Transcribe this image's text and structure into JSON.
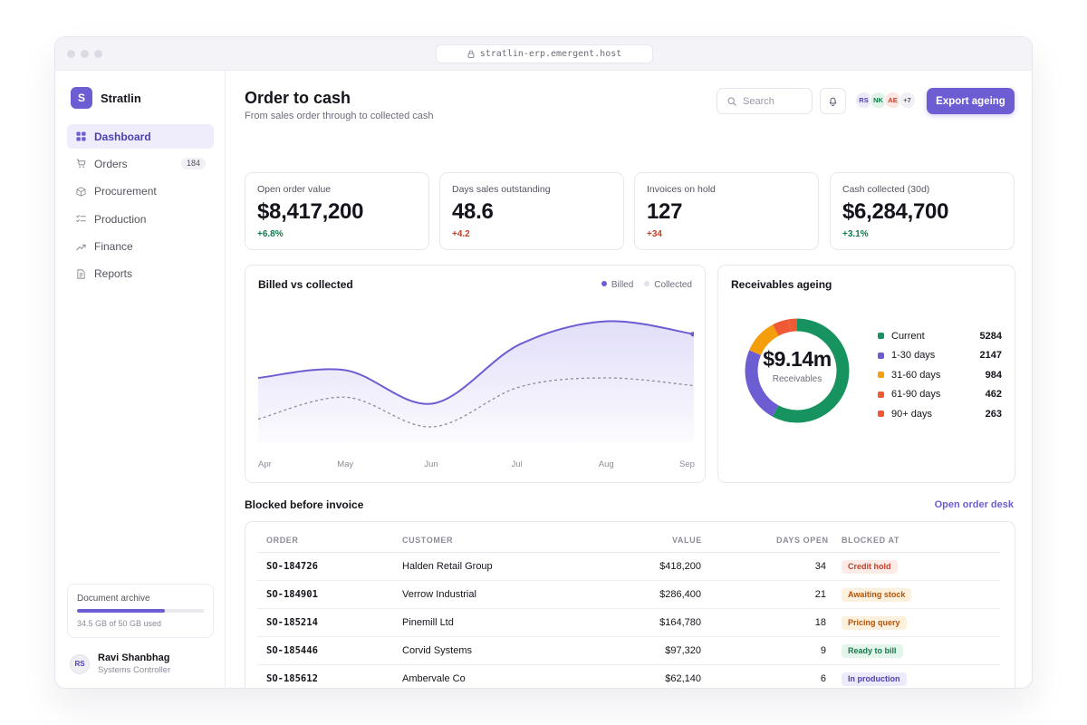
{
  "browser": {
    "url": "stratlin-erp.emergent.host"
  },
  "app": {
    "logo_letter": "S",
    "name": "Stratlin"
  },
  "sidebar": {
    "items": [
      {
        "label": "Dashboard",
        "icon": "grid-icon",
        "active": true
      },
      {
        "label": "Orders",
        "icon": "cart-icon",
        "badge": "184"
      },
      {
        "label": "Procurement",
        "icon": "box-icon"
      },
      {
        "label": "Production",
        "icon": "list-check-icon"
      },
      {
        "label": "Finance",
        "icon": "trend-up-icon"
      },
      {
        "label": "Reports",
        "icon": "file-text-icon"
      }
    ],
    "storage": {
      "title": "Document archive",
      "used_text": "34.5 GB of 50 GB used",
      "used_fraction": 0.69
    },
    "user": {
      "initials": "RS",
      "name": "Ravi Shanbhag",
      "role": "Systems Controller"
    }
  },
  "header": {
    "title": "Order to cash",
    "subtitle": "From sales order through to collected cash",
    "search_placeholder": "Search",
    "avatars": [
      {
        "initials": "RS",
        "bg": "#ece9fb",
        "fg": "#4d40b4"
      },
      {
        "initials": "NK",
        "bg": "#dff3e9",
        "fg": "#137a4c"
      },
      {
        "initials": "AE",
        "bg": "#fde6e1",
        "fg": "#c2412a"
      }
    ],
    "more_count": "+7",
    "export_label": "Export ageing"
  },
  "kpis": [
    {
      "label": "Open order value",
      "value": "$8,417,200",
      "delta": "+6.8%",
      "delta_color": "#137a4c"
    },
    {
      "label": "Days sales outstanding",
      "value": "48.6",
      "delta": "+4.2",
      "delta_color": "#c2412a"
    },
    {
      "label": "Invoices on hold",
      "value": "127",
      "delta": "+34",
      "delta_color": "#c2412a"
    },
    {
      "label": "Cash collected (30d)",
      "value": "$6,284,700",
      "delta": "+3.1%",
      "delta_color": "#137a4c"
    }
  ],
  "billed_chart": {
    "title": "Billed vs collected",
    "legend": [
      {
        "label": "Billed",
        "color": "#6c5dd3"
      },
      {
        "label": "Collected",
        "color": "#e3e2ea"
      }
    ]
  },
  "chart_data": {
    "type": "area",
    "categories": [
      "Apr",
      "May",
      "Jun",
      "Jul",
      "Aug",
      "Sep"
    ],
    "series": [
      {
        "name": "Billed",
        "values": [
          0.5,
          0.56,
          0.3,
          0.76,
          0.94,
          0.84
        ]
      },
      {
        "name": "Collected",
        "values": [
          0.18,
          0.35,
          0.12,
          0.43,
          0.5,
          0.44
        ]
      }
    ],
    "ylim": [
      0,
      1
    ],
    "grid": false,
    "legend_position": "top-right"
  },
  "ageing": {
    "title": "Receivables ageing",
    "center_value": "$9.14m",
    "center_label": "Receivables",
    "buckets": [
      {
        "label": "Current",
        "value": "5284",
        "amount": 5284,
        "color": "#17935f"
      },
      {
        "label": "1-30 days",
        "value": "2147",
        "amount": 2147,
        "color": "#6c5dd3"
      },
      {
        "label": "31-60 days",
        "value": "984",
        "amount": 984,
        "color": "#f59e0b"
      },
      {
        "label": "61-90 days",
        "value": "462",
        "amount": 462,
        "color": "#ef5a34"
      },
      {
        "label": "90+ days",
        "value": "263",
        "amount": 263,
        "color": "#ef5a34"
      }
    ]
  },
  "blocked": {
    "title": "Blocked before invoice",
    "link": "Open order desk",
    "columns": {
      "order": "ORDER",
      "customer": "CUSTOMER",
      "value": "VALUE",
      "days": "DAYS OPEN",
      "blocked": "BLOCKED AT"
    },
    "rows": [
      {
        "order": "SO-184726",
        "customer": "Halden Retail Group",
        "value": "$418,200",
        "days": "34",
        "status": "Credit hold",
        "status_bg": "#fdebe7",
        "status_fg": "#c2412a"
      },
      {
        "order": "SO-184901",
        "customer": "Verrow Industrial",
        "value": "$286,400",
        "days": "21",
        "status": "Awaiting stock",
        "status_bg": "#fdf0dc",
        "status_fg": "#b45309"
      },
      {
        "order": "SO-185214",
        "customer": "Pinemill Ltd",
        "value": "$164,780",
        "days": "18",
        "status": "Pricing query",
        "status_bg": "#fdf0dc",
        "status_fg": "#b45309"
      },
      {
        "order": "SO-185446",
        "customer": "Corvid Systems",
        "value": "$97,320",
        "days": "9",
        "status": "Ready to bill",
        "status_bg": "#e4f5ec",
        "status_fg": "#137a4c"
      },
      {
        "order": "SO-185612",
        "customer": "Ambervale Co",
        "value": "$62,140",
        "days": "6",
        "status": "In production",
        "status_bg": "#ecebfb",
        "status_fg": "#4d40b4"
      }
    ]
  }
}
